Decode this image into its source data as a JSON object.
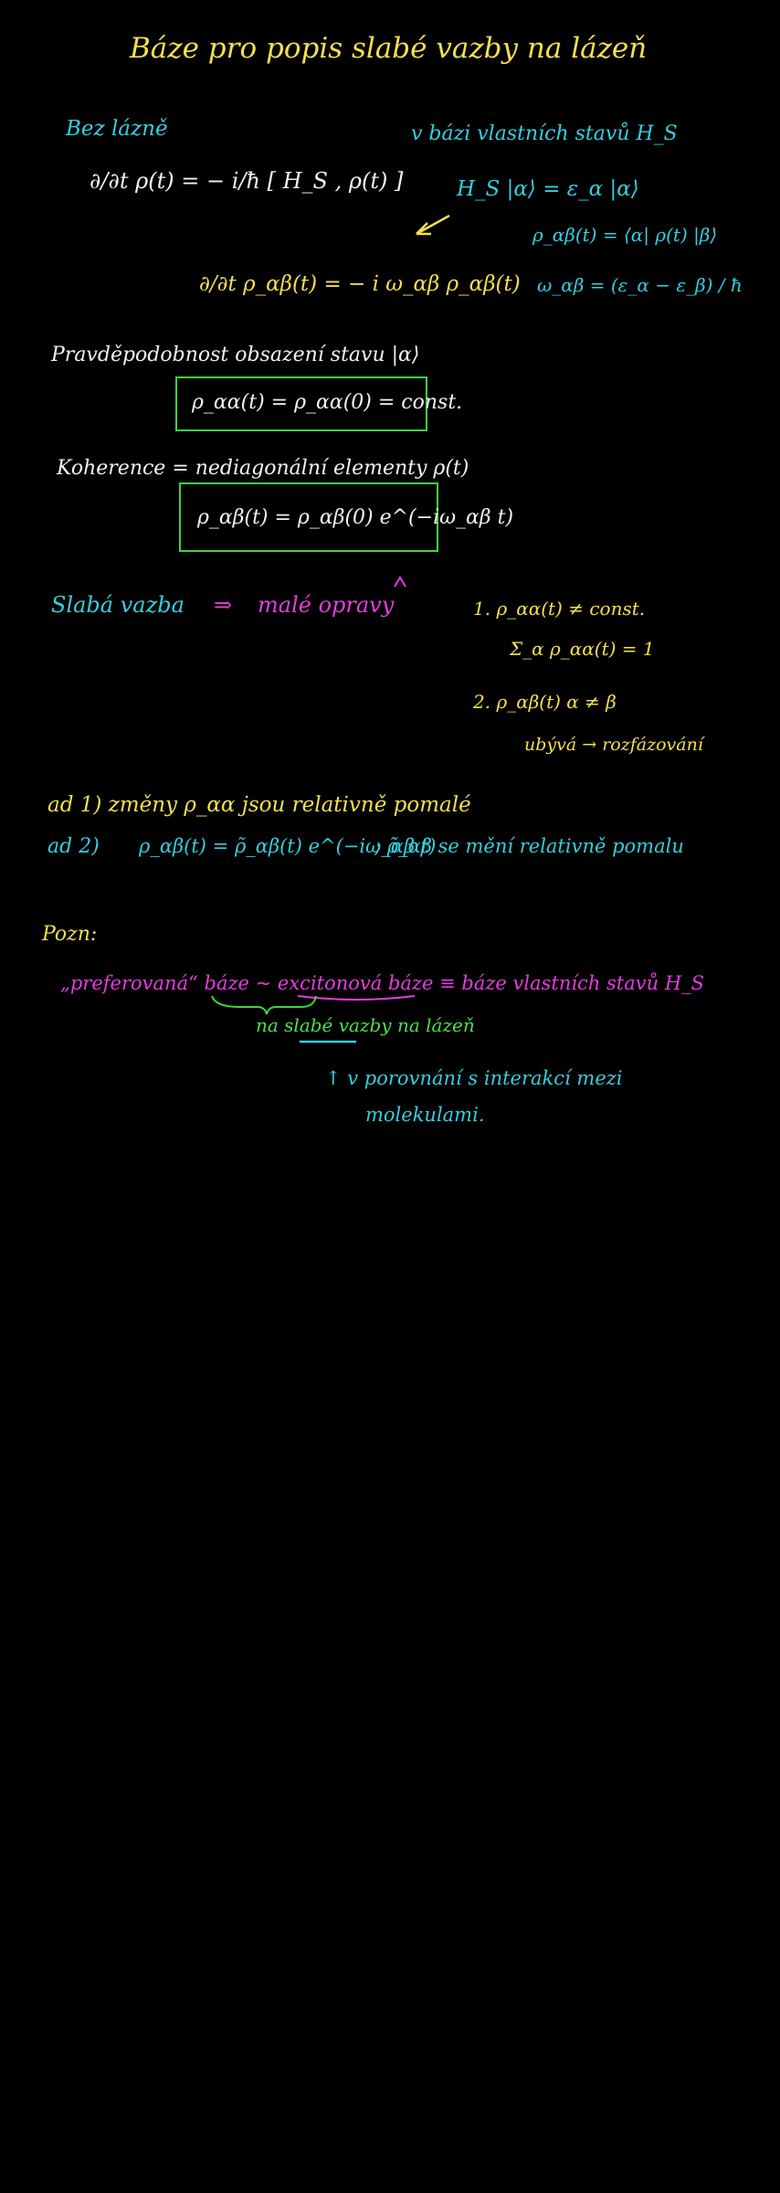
{
  "title": "Báze pro popis slabé vazby na lázeň",
  "left_heading": "Bez lázně",
  "eq_vonneumann": "∂/∂t ρ(t) = − i/ħ [ H_S , ρ(t) ]",
  "right_heading": "v bázi vlastních stavů H_S",
  "eigen_eq": "H_S |α⟩ = ε_α |α⟩",
  "rho_def": "ρ_αβ(t) = ⟨α| ρ(t) |β⟩",
  "eq_components": "∂/∂t ρ_αβ(t) = − i ω_αβ ρ_αβ(t)",
  "omega_def": "ω_αβ = (ε_α − ε_β) / ħ",
  "populations_label": "Pravděpodobnost obsazení stavu |α⟩",
  "populations_eq": "ρ_αα(t) = ρ_αα(0) = const.",
  "coherence_label": "Koherence = nediagonální elementy ρ(t)",
  "coherence_eq": "ρ_αβ(t) = ρ_αβ(0) e^(−iω_αβ t)",
  "weak_coupling": "Slabá vazba",
  "implies": "⇒",
  "small_corrections": "malé opravy",
  "item1_a": "1. ρ_αα(t) ≠ const.",
  "item1_b": "Σ_α ρ_αα(t) = 1",
  "item2_a": "2. ρ_αβ(t) α ≠ β",
  "item2_b": "ubývá → rozfázování",
  "ad1": "ad 1)  změny ρ_αα jsou relativně pomalé",
  "ad2_prefix": "ad 2)",
  "ad2_eq": "ρ_αβ(t) = ρ̃_αβ(t) e^(−iω_αβ t)",
  "ad2_suffix": "; ρ̃_αβ se mění relativně pomalu",
  "remark_label": "Pozn:",
  "remark_line": "„preferovaná“ báze ~ excitonová báze ≡ báze vlastních stavů H_S",
  "remark_green": "na slabé vazby na lázeň",
  "remark_note_line1": "↑ v porovnání s interakcí mezi",
  "remark_note_line2": "molekulami."
}
